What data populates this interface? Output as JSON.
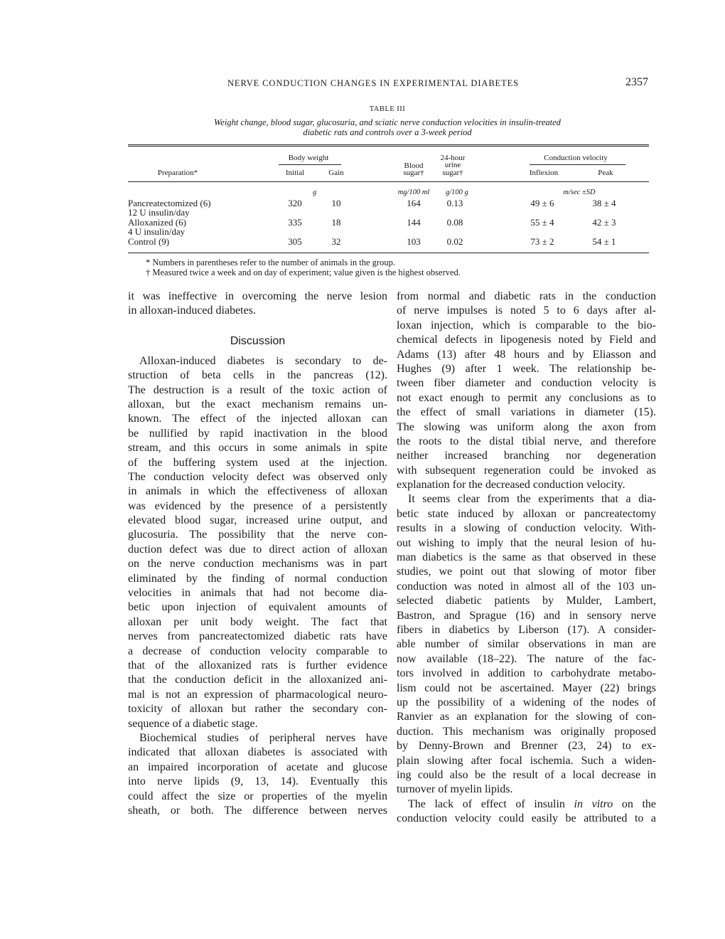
{
  "running_head": "NERVE CONDUCTION CHANGES IN EXPERIMENTAL DIABETES",
  "page_number": "2357",
  "table": {
    "label": "TABLE III",
    "caption_lines": [
      "Weight change, blood sugar, glucosuria, and sciatic nerve conduction velocities in insulin-treated",
      "diabetic rats and controls over a 3-week period"
    ],
    "headers": {
      "preparation": "Preparation*",
      "body_weight": "Body weight",
      "initial": "Initial",
      "gain": "Gain",
      "blood_sugar_1": "Blood",
      "blood_sugar_2": "sugar†",
      "urine_1": "24-hour",
      "urine_2": "urine",
      "urine_3": "sugar†",
      "conduction_velocity": "Conduction velocity",
      "inflexion": "Inflexion",
      "peak": "Peak"
    },
    "units": {
      "weight": "g",
      "blood_sugar": "mg/100 ml",
      "urine": "g/100 g",
      "velocity": "m/sec ±SD"
    },
    "rows": [
      {
        "preparation": "Pancreatectomized (6)",
        "note": "12 U insulin/day",
        "initial": "320",
        "gain": "10",
        "blood_sugar": "164",
        "urine_sugar": "0.13",
        "inflexion": "49 ± 6",
        "peak": "38 ± 4"
      },
      {
        "preparation": "Alloxanized (6)",
        "note": "4 U insulin/day",
        "initial": "335",
        "gain": "18",
        "blood_sugar": "144",
        "urine_sugar": "0.08",
        "inflexion": "55 ± 4",
        "peak": "42 ± 3"
      },
      {
        "preparation": "Control (9)",
        "note": "",
        "initial": "305",
        "gain": "32",
        "blood_sugar": "103",
        "urine_sugar": "0.02",
        "inflexion": "73 ± 2",
        "peak": "54 ± 1"
      }
    ],
    "footnotes": [
      "* Numbers in parentheses refer to the number of animals in the group.",
      "† Measured twice a week and on day of experiment; value given is the highest observed."
    ]
  },
  "left_column": {
    "intro_lines": [
      "it was ineffective in overcoming the nerve lesion",
      "in alloxan-induced diabetes."
    ],
    "heading": "Discussion",
    "para1": [
      "Alloxan-induced diabetes is secondary to de-",
      "struction of beta cells in the pancreas (12).",
      "The destruction is a result of the toxic action of",
      "alloxan, but the exact mechanism remains un-",
      "known. The effect of the injected alloxan can",
      "be nullified by rapid inactivation in the blood",
      "stream, and this occurs in some animals in spite",
      "of the buffering system used at the injection.",
      "The conduction velocity defect was observed only",
      "in animals in which the effectiveness of alloxan",
      "was evidenced by the presence of a persistently",
      "elevated blood sugar, increased urine output, and",
      "glucosuria. The possibility that the nerve con-",
      "duction defect was due to direct action of alloxan",
      "on the nerve conduction mechanisms was in part",
      "eliminated by the finding of normal conduction",
      "velocities in animals that had not become dia-",
      "betic upon injection of equivalent amounts of",
      "alloxan per unit body weight. The fact that",
      "nerves from pancreatectomized diabetic rats have",
      "a decrease of conduction velocity comparable to",
      "that of the alloxanized rats is further evidence",
      "that the conduction deficit in the alloxanized ani-",
      "mal is not an expression of pharmacological neuro-",
      "toxicity of alloxan but rather the secondary con-",
      "sequence of a diabetic stage."
    ],
    "para2": [
      "Biochemical studies of peripheral nerves have",
      "indicated that alloxan diabetes is associated with",
      "an impaired incorporation of acetate and glucose",
      "into nerve lipids (9, 13, 14). Eventually this",
      "could affect the size or properties of the myelin",
      "sheath, or both. The difference between nerves"
    ]
  },
  "right_column": {
    "para1": [
      "from normal and diabetic rats in the conduction",
      "of nerve impulses is noted 5 to 6 days after al-",
      "loxan injection, which is comparable to the bio-",
      "chemical defects in lipogenesis noted by Field and",
      "Adams (13) after 48 hours and by Eliasson and",
      "Hughes (9) after 1 week. The relationship be-",
      "tween fiber diameter and conduction velocity is",
      "not exact enough to permit any conclusions as to",
      "the effect of small variations in diameter (15).",
      "The slowing was uniform along the axon from",
      "the roots to the distal tibial nerve, and therefore",
      "neither increased branching nor degeneration",
      "with subsequent regeneration could be invoked as",
      "explanation for the decreased conduction velocity."
    ],
    "para2": [
      "It seems clear from the experiments that a dia-",
      "betic state induced by alloxan or pancreatectomy",
      "results in a slowing of conduction velocity. With-",
      "out wishing to imply that the neural lesion of hu-",
      "man diabetics is the same as that observed in these",
      "studies, we point out that slowing of motor fiber",
      "conduction was noted in almost all of the 103 un-",
      "selected diabetic patients by Mulder, Lambert,",
      "Bastron, and Sprague (16) and in sensory nerve",
      "fibers in diabetics by Liberson (17). A consider-",
      "able number of similar observations in man are",
      "now available (18–22). The nature of the fac-",
      "tors involved in addition to carbohydrate metabo-",
      "lism could not be ascertained. Mayer (22) brings",
      "up the possibility of a widening of the nodes of",
      "Ranvier as an explanation for the slowing of con-",
      "duction. This mechanism was originally proposed",
      "by Denny-Brown and Brenner (23, 24) to ex-",
      "plain slowing after focal ischemia. Such a widen-",
      "ing could also be the result of a local decrease in",
      "turnover of myelin lipids."
    ],
    "para3_first": {
      "pre": "The lack of effect of insulin ",
      "em": "in vitro",
      "post": " on the"
    },
    "para3_rest": [
      "conduction velocity could easily be attributed to a"
    ]
  }
}
